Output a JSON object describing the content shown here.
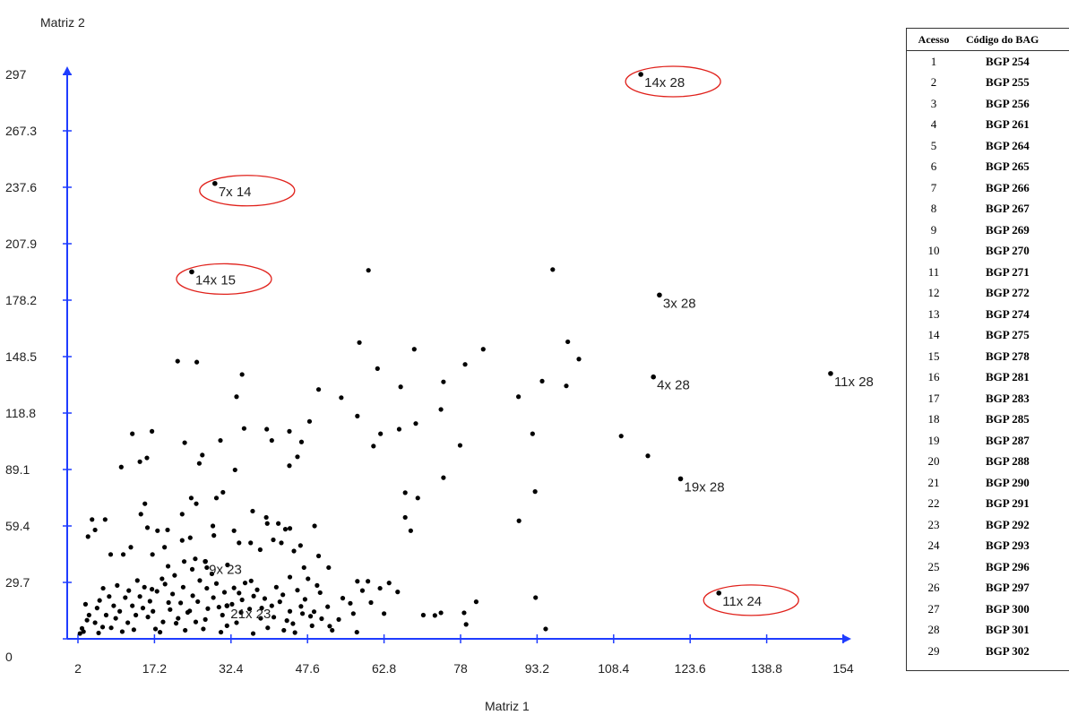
{
  "chart_data": {
    "type": "scatter",
    "ylabel": "Matriz 2",
    "xlabel": "Matriz 1",
    "xlim": [
      2,
      154
    ],
    "ylim": [
      0,
      297
    ],
    "x_ticks": [
      "2",
      "17.2",
      "32.4",
      "47.6",
      "62.8",
      "78",
      "93.2",
      "108.4",
      "123.6",
      "138.8",
      "154"
    ],
    "y_ticks": [
      "0",
      "29.7",
      "59.4",
      "89.1",
      "118.8",
      "148.5",
      "178.2",
      "207.9",
      "237.6",
      "267.3",
      "297"
    ],
    "annotations": [
      {
        "label": "14x 28",
        "x": 113.8,
        "y": 297,
        "circled": true
      },
      {
        "label": "7x 14",
        "x": 29.2,
        "y": 239.6,
        "circled": true
      },
      {
        "label": "14x 15",
        "x": 24.6,
        "y": 193.1,
        "circled": true
      },
      {
        "label": "3x 28",
        "x": 117.5,
        "y": 180.9,
        "circled": false
      },
      {
        "label": "4x 28",
        "x": 116.3,
        "y": 137.8,
        "circled": false
      },
      {
        "label": "11x 28",
        "x": 151.5,
        "y": 139.6,
        "circled": false
      },
      {
        "label": "19x 28",
        "x": 121.7,
        "y": 84.2,
        "circled": false
      },
      {
        "label": "11x 24",
        "x": 129.3,
        "y": 24.1,
        "circled": true
      },
      {
        "label": "9x 23",
        "x": 27.3,
        "y": 40.7,
        "circled": false
      },
      {
        "label": "21x 23",
        "x": 31.6,
        "y": 17.4,
        "circled": false
      }
    ],
    "points": [
      [
        59.7,
        193.9
      ],
      [
        96.3,
        194.3
      ],
      [
        57.9,
        155.9
      ],
      [
        99.3,
        156.3
      ],
      [
        68.8,
        152.4
      ],
      [
        82.5,
        152.4
      ],
      [
        101.5,
        147.2
      ],
      [
        25.6,
        145.6
      ],
      [
        21.8,
        146.1
      ],
      [
        61.5,
        142.2
      ],
      [
        78.9,
        144.4
      ],
      [
        34.6,
        139.1
      ],
      [
        74.6,
        135.2
      ],
      [
        94.2,
        135.6
      ],
      [
        99,
        133.1
      ],
      [
        66.1,
        132.6
      ],
      [
        49.8,
        131.2
      ],
      [
        33.5,
        127.4
      ],
      [
        54.3,
        126.9
      ],
      [
        89.5,
        127.4
      ],
      [
        74.1,
        120.7
      ],
      [
        57.5,
        117.2
      ],
      [
        69.1,
        113.3
      ],
      [
        65.8,
        110.3
      ],
      [
        62.1,
        107.9
      ],
      [
        109.9,
        106.7
      ],
      [
        77.9,
        101.8
      ],
      [
        60.7,
        101.4
      ],
      [
        92.3,
        107.9
      ],
      [
        48,
        114.4
      ],
      [
        40.5,
        104.4
      ],
      [
        44,
        109.2
      ],
      [
        39.5,
        110.3
      ],
      [
        46.4,
        103.6
      ],
      [
        45.6,
        95.8
      ],
      [
        23.2,
        103.2
      ],
      [
        30.3,
        104.4
      ],
      [
        35,
        110.7
      ],
      [
        12.8,
        107.9
      ],
      [
        16.7,
        109.2
      ],
      [
        14.3,
        93.2
      ],
      [
        15.7,
        95.2
      ],
      [
        10.6,
        90.4
      ],
      [
        26.7,
        96.7
      ],
      [
        26.1,
        92.3
      ],
      [
        33.2,
        88.9
      ],
      [
        44,
        91.1
      ],
      [
        74.6,
        84.8
      ],
      [
        115.2,
        96.3
      ],
      [
        92.8,
        77.5
      ],
      [
        67,
        76.9
      ],
      [
        69.5,
        74.1
      ],
      [
        24.5,
        74.1
      ],
      [
        25.5,
        71.1
      ],
      [
        15.3,
        71.1
      ],
      [
        14.5,
        65.6
      ],
      [
        22.7,
        65.6
      ],
      [
        29.5,
        74.1
      ],
      [
        30.8,
        77.1
      ],
      [
        36.7,
        67.2
      ],
      [
        39.4,
        63.9
      ],
      [
        39.6,
        60.7
      ],
      [
        41.8,
        60.7
      ],
      [
        44.1,
        58.1
      ],
      [
        49,
        59.4
      ],
      [
        68.1,
        56.9
      ],
      [
        67,
        63.9
      ],
      [
        89.6,
        62.1
      ],
      [
        4.8,
        62.8
      ],
      [
        5.4,
        57.3
      ],
      [
        7.4,
        62.8
      ],
      [
        4,
        53.8
      ],
      [
        8.5,
        44.4
      ],
      [
        11,
        44.4
      ],
      [
        12.5,
        48.2
      ],
      [
        16.8,
        44.4
      ],
      [
        17.8,
        56.9
      ],
      [
        15.8,
        58.5
      ],
      [
        19.8,
        57.3
      ],
      [
        19.2,
        48.2
      ],
      [
        22.7,
        51.8
      ],
      [
        24.3,
        53.2
      ],
      [
        28.8,
        59.4
      ],
      [
        29,
        54.4
      ],
      [
        33,
        56.9
      ],
      [
        34,
        50.5
      ],
      [
        36.3,
        50.5
      ],
      [
        38.2,
        46.9
      ],
      [
        40.8,
        52.1
      ],
      [
        43.2,
        57.7
      ],
      [
        42.4,
        50.5
      ],
      [
        44.9,
        46.2
      ],
      [
        46.2,
        49.1
      ],
      [
        49.8,
        43.6
      ],
      [
        19.9,
        38.2
      ],
      [
        23.1,
        40.7
      ],
      [
        25.3,
        42.1
      ],
      [
        27.6,
        37.5
      ],
      [
        31.7,
        38.9
      ],
      [
        36.4,
        30.5
      ],
      [
        44.1,
        32.5
      ],
      [
        46.9,
        37.5
      ],
      [
        47.7,
        31.6
      ],
      [
        49.5,
        28.1
      ],
      [
        51.8,
        37.5
      ],
      [
        54.6,
        21.4
      ],
      [
        58.5,
        25.4
      ],
      [
        59.6,
        30.3
      ],
      [
        62,
        26.6
      ],
      [
        63.8,
        29.4
      ],
      [
        65.5,
        24.7
      ],
      [
        60.2,
        19.1
      ],
      [
        62.8,
        13.3
      ],
      [
        56.7,
        13.3
      ],
      [
        57.4,
        3.5
      ],
      [
        52,
        6.7
      ],
      [
        70.6,
        12.5
      ],
      [
        72.9,
        12.3
      ],
      [
        74.1,
        13.7
      ],
      [
        78.7,
        13.7
      ],
      [
        81.1,
        19.5
      ],
      [
        79.1,
        7.6
      ],
      [
        92.9,
        21.7
      ],
      [
        94.9,
        5.2
      ],
      [
        38.5,
        16.2
      ],
      [
        40.5,
        17.4
      ],
      [
        42.1,
        19.5
      ],
      [
        44.1,
        14.5
      ],
      [
        46.3,
        17.1
      ],
      [
        48.9,
        14.3
      ],
      [
        50.4,
        10.6
      ],
      [
        52.5,
        4.5
      ],
      [
        48.5,
        6.9
      ],
      [
        44.7,
        8
      ],
      [
        42.9,
        4.5
      ],
      [
        36.8,
        2.8
      ],
      [
        34.4,
        13.9
      ],
      [
        33.5,
        8.5
      ],
      [
        30.4,
        3.5
      ],
      [
        30.7,
        12.5
      ],
      [
        27.8,
        15.9
      ],
      [
        3.5,
        18.2
      ],
      [
        4.2,
        12.5
      ],
      [
        5.4,
        8.5
      ],
      [
        3.1,
        3.8
      ],
      [
        2.4,
        2.8
      ],
      [
        6.9,
        6.2
      ],
      [
        7.6,
        12.5
      ],
      [
        9.1,
        17.4
      ],
      [
        8.2,
        22.3
      ],
      [
        7,
        26.6
      ],
      [
        6.3,
        20.2
      ],
      [
        10.8,
        3.8
      ],
      [
        11.9,
        8.5
      ],
      [
        13.5,
        12.5
      ],
      [
        14.9,
        16.2
      ],
      [
        16.3,
        19.8
      ],
      [
        17.7,
        25
      ],
      [
        19.3,
        28.8
      ],
      [
        20.8,
        23.6
      ],
      [
        22.4,
        18.9
      ],
      [
        23.8,
        13.9
      ],
      [
        25.4,
        8.9
      ],
      [
        26.9,
        5.2
      ],
      [
        9.8,
        28.1
      ],
      [
        11.4,
        21.7
      ],
      [
        12.8,
        17.4
      ],
      [
        14.3,
        22.3
      ],
      [
        15.9,
        11.5
      ],
      [
        17.4,
        5.2
      ],
      [
        18.9,
        8.9
      ],
      [
        20.3,
        15.4
      ],
      [
        21.9,
        10.8
      ],
      [
        23.3,
        4.5
      ],
      [
        24.8,
        22.7
      ],
      [
        26.2,
        30.7
      ],
      [
        27.6,
        26.6
      ],
      [
        28.9,
        21.7
      ],
      [
        29.5,
        29.1
      ],
      [
        31.1,
        24.5
      ],
      [
        32.6,
        18.2
      ],
      [
        34,
        24.1
      ],
      [
        35.2,
        29.4
      ],
      [
        36.9,
        22.5
      ],
      [
        38.3,
        10.8
      ],
      [
        39.7,
        5.8
      ],
      [
        41.4,
        27.2
      ],
      [
        42.7,
        23.2
      ],
      [
        45.6,
        25.6
      ],
      [
        47.1,
        20.8
      ],
      [
        48.2,
        11.9
      ],
      [
        5.8,
        16.2
      ],
      [
        9.5,
        10.8
      ],
      [
        13.1,
        4.8
      ],
      [
        16.7,
        26.1
      ],
      [
        18.7,
        31.6
      ],
      [
        21.2,
        33.4
      ],
      [
        24.7,
        36.6
      ],
      [
        2.8,
        5.5
      ],
      [
        3.8,
        9.8
      ],
      [
        6.1,
        3.1
      ],
      [
        8.6,
        5.8
      ],
      [
        10.3,
        14.5
      ],
      [
        12.1,
        25.4
      ],
      [
        13.8,
        30.7
      ],
      [
        15.2,
        27.2
      ],
      [
        16.9,
        14.5
      ],
      [
        18.3,
        3.5
      ],
      [
        20,
        19.1
      ],
      [
        21.5,
        8.2
      ],
      [
        22.9,
        27.2
      ],
      [
        24.2,
        14.7
      ],
      [
        25.8,
        19.6
      ],
      [
        27.3,
        10.2
      ],
      [
        28.6,
        34.2
      ],
      [
        30,
        16.7
      ],
      [
        31.6,
        6.9
      ],
      [
        33,
        26.8
      ],
      [
        34.6,
        20.5
      ],
      [
        36.1,
        15.7
      ],
      [
        37.6,
        25.8
      ],
      [
        39.1,
        21.2
      ],
      [
        40.9,
        11.4
      ],
      [
        43.5,
        9.6
      ],
      [
        45.1,
        3.3
      ],
      [
        46.6,
        13.3
      ],
      [
        50.1,
        24.3
      ],
      [
        51.6,
        16.9
      ],
      [
        53.8,
        10.2
      ],
      [
        56.1,
        18.7
      ],
      [
        57.5,
        30.3
      ]
    ]
  },
  "table": {
    "headers": [
      "Acesso",
      "Código do BAG"
    ],
    "rows": [
      [
        "1",
        "BGP 254"
      ],
      [
        "2",
        "BGP 255"
      ],
      [
        "3",
        "BGP 256"
      ],
      [
        "4",
        "BGP 261"
      ],
      [
        "5",
        "BGP 264"
      ],
      [
        "6",
        "BGP 265"
      ],
      [
        "7",
        "BGP 266"
      ],
      [
        "8",
        "BGP 267"
      ],
      [
        "9",
        "BGP 269"
      ],
      [
        "10",
        "BGP 270"
      ],
      [
        "11",
        "BGP 271"
      ],
      [
        "12",
        "BGP 272"
      ],
      [
        "13",
        "BGP 274"
      ],
      [
        "14",
        "BGP 275"
      ],
      [
        "15",
        "BGP 278"
      ],
      [
        "16",
        "BGP 281"
      ],
      [
        "17",
        "BGP 283"
      ],
      [
        "18",
        "BGP 285"
      ],
      [
        "19",
        "BGP 287"
      ],
      [
        "20",
        "BGP 288"
      ],
      [
        "21",
        "BGP 290"
      ],
      [
        "22",
        "BGP 291"
      ],
      [
        "23",
        "BGP 292"
      ],
      [
        "24",
        "BGP 293"
      ],
      [
        "25",
        "BGP 296"
      ],
      [
        "26",
        "BGP 297"
      ],
      [
        "27",
        "BGP 300"
      ],
      [
        "28",
        "BGP 301"
      ],
      [
        "29",
        "BGP 302"
      ]
    ]
  }
}
